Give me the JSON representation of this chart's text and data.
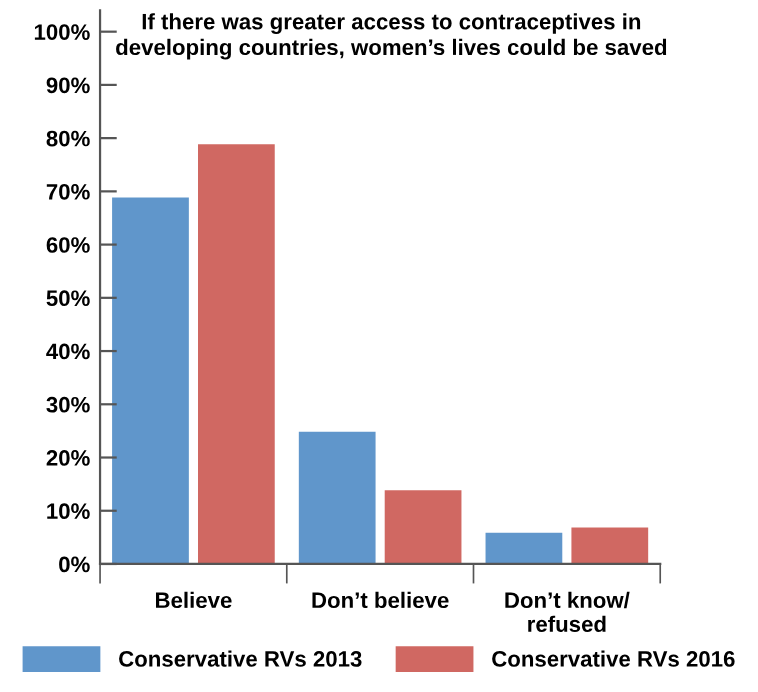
{
  "chart_data": {
    "type": "bar",
    "title": "If there was greater access to contraceptives in\ndeveloping countries, women’s lives could be saved",
    "categories": [
      "Believe",
      "Don’t believe",
      "Don’t know/\nrefused"
    ],
    "series": [
      {
        "name": "Conservative RVs 2013",
        "color": "#6096cb",
        "values": [
          69,
          25,
          6
        ]
      },
      {
        "name": "Conservative RVs 2016",
        "color": "#d06862",
        "values": [
          79,
          14,
          7
        ]
      }
    ],
    "ylim": [
      0,
      104
    ],
    "yticks": [
      {
        "value": 0,
        "label": "0%"
      },
      {
        "value": 10,
        "label": "10%"
      },
      {
        "value": 20,
        "label": "20%"
      },
      {
        "value": 30,
        "label": "30%"
      },
      {
        "value": 40,
        "label": "40%"
      },
      {
        "value": 50,
        "label": "50%"
      },
      {
        "value": 60,
        "label": "60%"
      },
      {
        "value": 70,
        "label": "70%"
      },
      {
        "value": 80,
        "label": "80%"
      },
      {
        "value": 90,
        "label": "90%"
      },
      {
        "value": 100,
        "label": "100%"
      }
    ],
    "grid": false,
    "legend": "bottom"
  }
}
